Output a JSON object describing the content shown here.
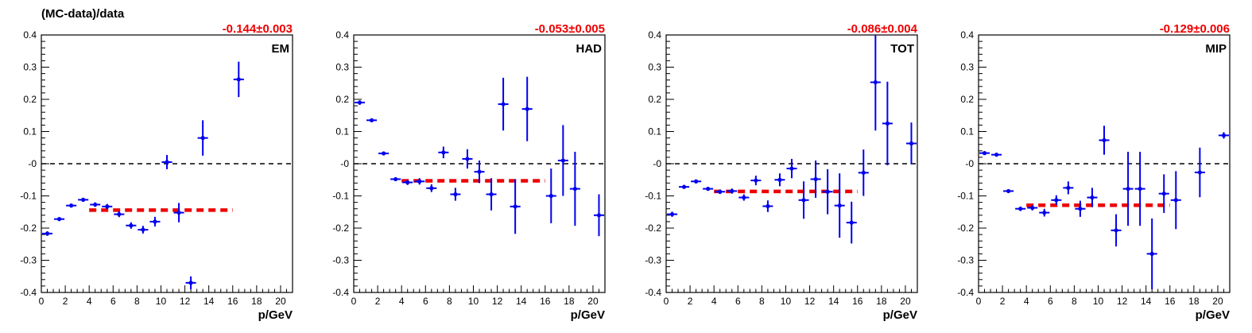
{
  "figure": {
    "ylabel": "(MC-data)/data",
    "colors": {
      "points": "#0000ee",
      "fit": "#ee0000",
      "zero_line": "#000000",
      "fit_text": "#ee0000"
    }
  },
  "chart_data": [
    {
      "type": "scatter",
      "label": "EM",
      "fit_text": "-0.144±0.003",
      "fit": {
        "value": -0.144,
        "x_range": [
          4,
          16
        ]
      },
      "xlabel": "p/GeV",
      "xlim": [
        0,
        21
      ],
      "ylim": [
        -0.4,
        0.4
      ],
      "xticks": [
        0,
        2,
        4,
        6,
        8,
        10,
        12,
        14,
        16,
        18,
        20
      ],
      "yticks": [
        -0.4,
        -0.3,
        -0.2,
        -0.1,
        0,
        0.1,
        0.2,
        0.3,
        0.4
      ],
      "ytick_labels": [
        "-0.4",
        "-0.3",
        "-0.2",
        "-0.1",
        "-0",
        "0.1",
        "0.2",
        "0.3",
        "0.4"
      ],
      "points": [
        {
          "x": 0.5,
          "y": -0.217,
          "err": 0.007
        },
        {
          "x": 1.5,
          "y": -0.172,
          "err": 0.006
        },
        {
          "x": 2.5,
          "y": -0.13,
          "err": 0.006
        },
        {
          "x": 3.5,
          "y": -0.112,
          "err": 0.006
        },
        {
          "x": 4.5,
          "y": -0.127,
          "err": 0.007
        },
        {
          "x": 5.5,
          "y": -0.133,
          "err": 0.008
        },
        {
          "x": 6.5,
          "y": -0.157,
          "err": 0.009
        },
        {
          "x": 7.5,
          "y": -0.192,
          "err": 0.01
        },
        {
          "x": 8.5,
          "y": -0.205,
          "err": 0.012
        },
        {
          "x": 9.5,
          "y": -0.18,
          "err": 0.015
        },
        {
          "x": 10.5,
          "y": 0.005,
          "err": 0.022
        },
        {
          "x": 11.5,
          "y": -0.152,
          "err": 0.03
        },
        {
          "x": 12.5,
          "y": -0.37,
          "err": 0.02
        },
        {
          "x": 13.5,
          "y": 0.08,
          "err": 0.055
        },
        {
          "x": 16.5,
          "y": 0.262,
          "err": 0.055
        }
      ]
    },
    {
      "type": "scatter",
      "label": "HAD",
      "fit_text": "-0.053±0.005",
      "fit": {
        "value": -0.053,
        "x_range": [
          4,
          16
        ]
      },
      "xlabel": "p/GeV",
      "xlim": [
        0,
        21
      ],
      "ylim": [
        -0.4,
        0.4
      ],
      "xticks": [
        0,
        2,
        4,
        6,
        8,
        10,
        12,
        14,
        16,
        18,
        20
      ],
      "yticks": [
        -0.4,
        -0.3,
        -0.2,
        -0.1,
        0,
        0.1,
        0.2,
        0.3,
        0.4
      ],
      "ytick_labels": [
        "-0.4",
        "-0.3",
        "-0.2",
        "-0.1",
        "-0",
        "0.1",
        "0.2",
        "0.3",
        "0.4"
      ],
      "points": [
        {
          "x": 0.5,
          "y": 0.19,
          "err": 0.007
        },
        {
          "x": 1.5,
          "y": 0.135,
          "err": 0.006
        },
        {
          "x": 2.5,
          "y": 0.032,
          "err": 0.006
        },
        {
          "x": 3.5,
          "y": -0.048,
          "err": 0.006
        },
        {
          "x": 4.5,
          "y": -0.058,
          "err": 0.008
        },
        {
          "x": 5.5,
          "y": -0.055,
          "err": 0.01
        },
        {
          "x": 6.5,
          "y": -0.076,
          "err": 0.012
        },
        {
          "x": 7.5,
          "y": 0.035,
          "err": 0.018
        },
        {
          "x": 8.5,
          "y": -0.095,
          "err": 0.02
        },
        {
          "x": 9.5,
          "y": 0.015,
          "err": 0.03
        },
        {
          "x": 10.5,
          "y": -0.025,
          "err": 0.035
        },
        {
          "x": 11.5,
          "y": -0.095,
          "err": 0.05
        },
        {
          "x": 12.5,
          "y": 0.185,
          "err": 0.082
        },
        {
          "x": 13.5,
          "y": -0.133,
          "err": 0.085
        },
        {
          "x": 14.5,
          "y": 0.17,
          "err": 0.1
        },
        {
          "x": 16.5,
          "y": -0.1,
          "err": 0.085
        },
        {
          "x": 17.5,
          "y": 0.01,
          "err": 0.11
        },
        {
          "x": 18.5,
          "y": -0.078,
          "err": 0.115
        },
        {
          "x": 20.5,
          "y": -0.16,
          "err": 0.065
        }
      ]
    },
    {
      "type": "scatter",
      "label": "TOT",
      "fit_text": "-0.086±0.004",
      "fit": {
        "value": -0.086,
        "x_range": [
          4,
          16
        ]
      },
      "xlabel": "p/GeV",
      "xlim": [
        0,
        21
      ],
      "ylim": [
        -0.4,
        0.4
      ],
      "xticks": [
        0,
        2,
        4,
        6,
        8,
        10,
        12,
        14,
        16,
        18,
        20
      ],
      "yticks": [
        -0.4,
        -0.3,
        -0.2,
        -0.1,
        0,
        0.1,
        0.2,
        0.3,
        0.4
      ],
      "ytick_labels": [
        "-0.4",
        "-0.3",
        "-0.2",
        "-0.1",
        "-0",
        "0.1",
        "0.2",
        "0.3",
        "0.4"
      ],
      "points": [
        {
          "x": 0.5,
          "y": -0.157,
          "err": 0.008
        },
        {
          "x": 1.5,
          "y": -0.072,
          "err": 0.006
        },
        {
          "x": 2.5,
          "y": -0.055,
          "err": 0.006
        },
        {
          "x": 3.5,
          "y": -0.078,
          "err": 0.006
        },
        {
          "x": 4.5,
          "y": -0.087,
          "err": 0.007
        },
        {
          "x": 5.5,
          "y": -0.085,
          "err": 0.008
        },
        {
          "x": 6.5,
          "y": -0.105,
          "err": 0.01
        },
        {
          "x": 7.5,
          "y": -0.052,
          "err": 0.015
        },
        {
          "x": 8.5,
          "y": -0.132,
          "err": 0.018
        },
        {
          "x": 9.5,
          "y": -0.05,
          "err": 0.02
        },
        {
          "x": 10.5,
          "y": -0.015,
          "err": 0.03
        },
        {
          "x": 11.5,
          "y": -0.113,
          "err": 0.058
        },
        {
          "x": 12.5,
          "y": -0.048,
          "err": 0.058
        },
        {
          "x": 13.5,
          "y": -0.087,
          "err": 0.07
        },
        {
          "x": 14.5,
          "y": -0.13,
          "err": 0.1
        },
        {
          "x": 15.5,
          "y": -0.183,
          "err": 0.065
        },
        {
          "x": 16.5,
          "y": -0.028,
          "err": 0.072
        },
        {
          "x": 17.5,
          "y": 0.253,
          "err": 0.15
        },
        {
          "x": 18.5,
          "y": 0.125,
          "err": 0.13
        },
        {
          "x": 20.5,
          "y": 0.063,
          "err": 0.065
        }
      ]
    },
    {
      "type": "scatter",
      "label": "MIP",
      "fit_text": "-0.129±0.006",
      "fit": {
        "value": -0.129,
        "x_range": [
          4,
          16
        ]
      },
      "xlabel": "p/GeV",
      "xlim": [
        0,
        21
      ],
      "ylim": [
        -0.4,
        0.4
      ],
      "xticks": [
        0,
        2,
        4,
        6,
        8,
        10,
        12,
        14,
        16,
        18,
        20
      ],
      "yticks": [
        -0.4,
        -0.3,
        -0.2,
        -0.1,
        0,
        0.1,
        0.2,
        0.3,
        0.4
      ],
      "ytick_labels": [
        "-0.4",
        "-0.3",
        "-0.2",
        "-0.1",
        "-0",
        "0.1",
        "0.2",
        "0.3",
        "0.4"
      ],
      "points": [
        {
          "x": 0.5,
          "y": 0.033,
          "err": 0.005
        },
        {
          "x": 1.5,
          "y": 0.028,
          "err": 0.005
        },
        {
          "x": 2.5,
          "y": -0.085,
          "err": 0.006
        },
        {
          "x": 3.5,
          "y": -0.14,
          "err": 0.007
        },
        {
          "x": 4.5,
          "y": -0.137,
          "err": 0.008
        },
        {
          "x": 5.5,
          "y": -0.152,
          "err": 0.012
        },
        {
          "x": 6.5,
          "y": -0.113,
          "err": 0.015
        },
        {
          "x": 7.5,
          "y": -0.075,
          "err": 0.02
        },
        {
          "x": 8.5,
          "y": -0.14,
          "err": 0.025
        },
        {
          "x": 9.5,
          "y": -0.105,
          "err": 0.03
        },
        {
          "x": 10.5,
          "y": 0.073,
          "err": 0.045
        },
        {
          "x": 11.5,
          "y": -0.207,
          "err": 0.05
        },
        {
          "x": 12.5,
          "y": -0.078,
          "err": 0.115
        },
        {
          "x": 13.5,
          "y": -0.078,
          "err": 0.115
        },
        {
          "x": 14.5,
          "y": -0.28,
          "err": 0.11
        },
        {
          "x": 15.5,
          "y": -0.093,
          "err": 0.06
        },
        {
          "x": 16.5,
          "y": -0.113,
          "err": 0.09
        },
        {
          "x": 18.5,
          "y": -0.027,
          "err": 0.077
        },
        {
          "x": 20.5,
          "y": 0.088,
          "err": 0.01
        }
      ]
    }
  ]
}
